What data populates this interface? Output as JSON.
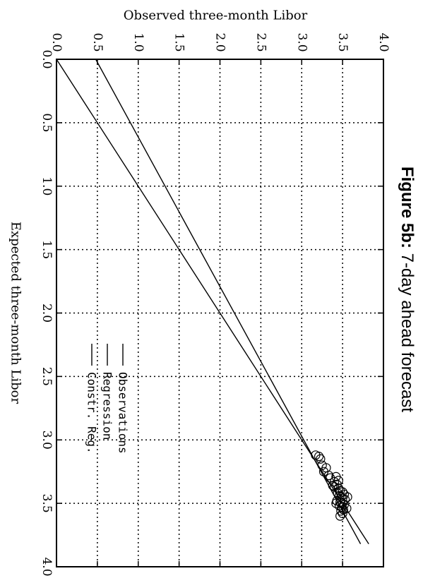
{
  "chart_data": {
    "type": "scatter",
    "title_bold": "Figure 5b:",
    "title_rest": " 7-day ahead forecast",
    "xlabel": "Expected three-month Libor",
    "ylabel": "Observed three-month Libor",
    "xlim": [
      0,
      4
    ],
    "ylim": [
      0,
      4
    ],
    "xticks": [
      "0.0",
      "0.5",
      "1.0",
      "1.5",
      "2.0",
      "2.5",
      "3.0",
      "3.5",
      "4.0"
    ],
    "yticks": [
      "0.0",
      "0.5",
      "1.0",
      "1.5",
      "2.0",
      "2.5",
      "3.0",
      "3.5",
      "4.0"
    ],
    "grid": true,
    "legend_position": "center-right",
    "series": [
      {
        "name": "Observations",
        "kind": "points",
        "marker": "circle",
        "points": [
          [
            3.12,
            3.17
          ],
          [
            3.13,
            3.21
          ],
          [
            3.15,
            3.23
          ],
          [
            3.2,
            3.25
          ],
          [
            3.22,
            3.3
          ],
          [
            3.25,
            3.27
          ],
          [
            3.28,
            3.33
          ],
          [
            3.3,
            3.35
          ],
          [
            3.33,
            3.4
          ],
          [
            3.35,
            3.43
          ],
          [
            3.37,
            3.4
          ],
          [
            3.38,
            3.45
          ],
          [
            3.4,
            3.47
          ],
          [
            3.41,
            3.5
          ],
          [
            3.42,
            3.44
          ],
          [
            3.43,
            3.52
          ],
          [
            3.44,
            3.46
          ],
          [
            3.45,
            3.48
          ],
          [
            3.46,
            3.5
          ],
          [
            3.47,
            3.53
          ],
          [
            3.48,
            3.43
          ],
          [
            3.49,
            3.47
          ],
          [
            3.5,
            3.5
          ],
          [
            3.51,
            3.52
          ],
          [
            3.52,
            3.46
          ],
          [
            3.53,
            3.49
          ],
          [
            3.55,
            3.51
          ],
          [
            3.56,
            3.48
          ],
          [
            3.58,
            3.5
          ],
          [
            3.6,
            3.47
          ],
          [
            3.36,
            3.38
          ],
          [
            3.32,
            3.45
          ],
          [
            3.29,
            3.42
          ],
          [
            3.45,
            3.56
          ],
          [
            3.5,
            3.42
          ],
          [
            3.54,
            3.55
          ]
        ]
      },
      {
        "name": "Regression",
        "kind": "line",
        "points": [
          [
            0,
            0.48
          ],
          [
            3.82,
            3.72
          ]
        ]
      },
      {
        "name": "Constr. Reg.",
        "kind": "line",
        "points": [
          [
            0,
            0
          ],
          [
            3.82,
            3.82
          ]
        ]
      }
    ],
    "legend": [
      "Observations",
      "Regression",
      "Constr. Reg."
    ]
  }
}
